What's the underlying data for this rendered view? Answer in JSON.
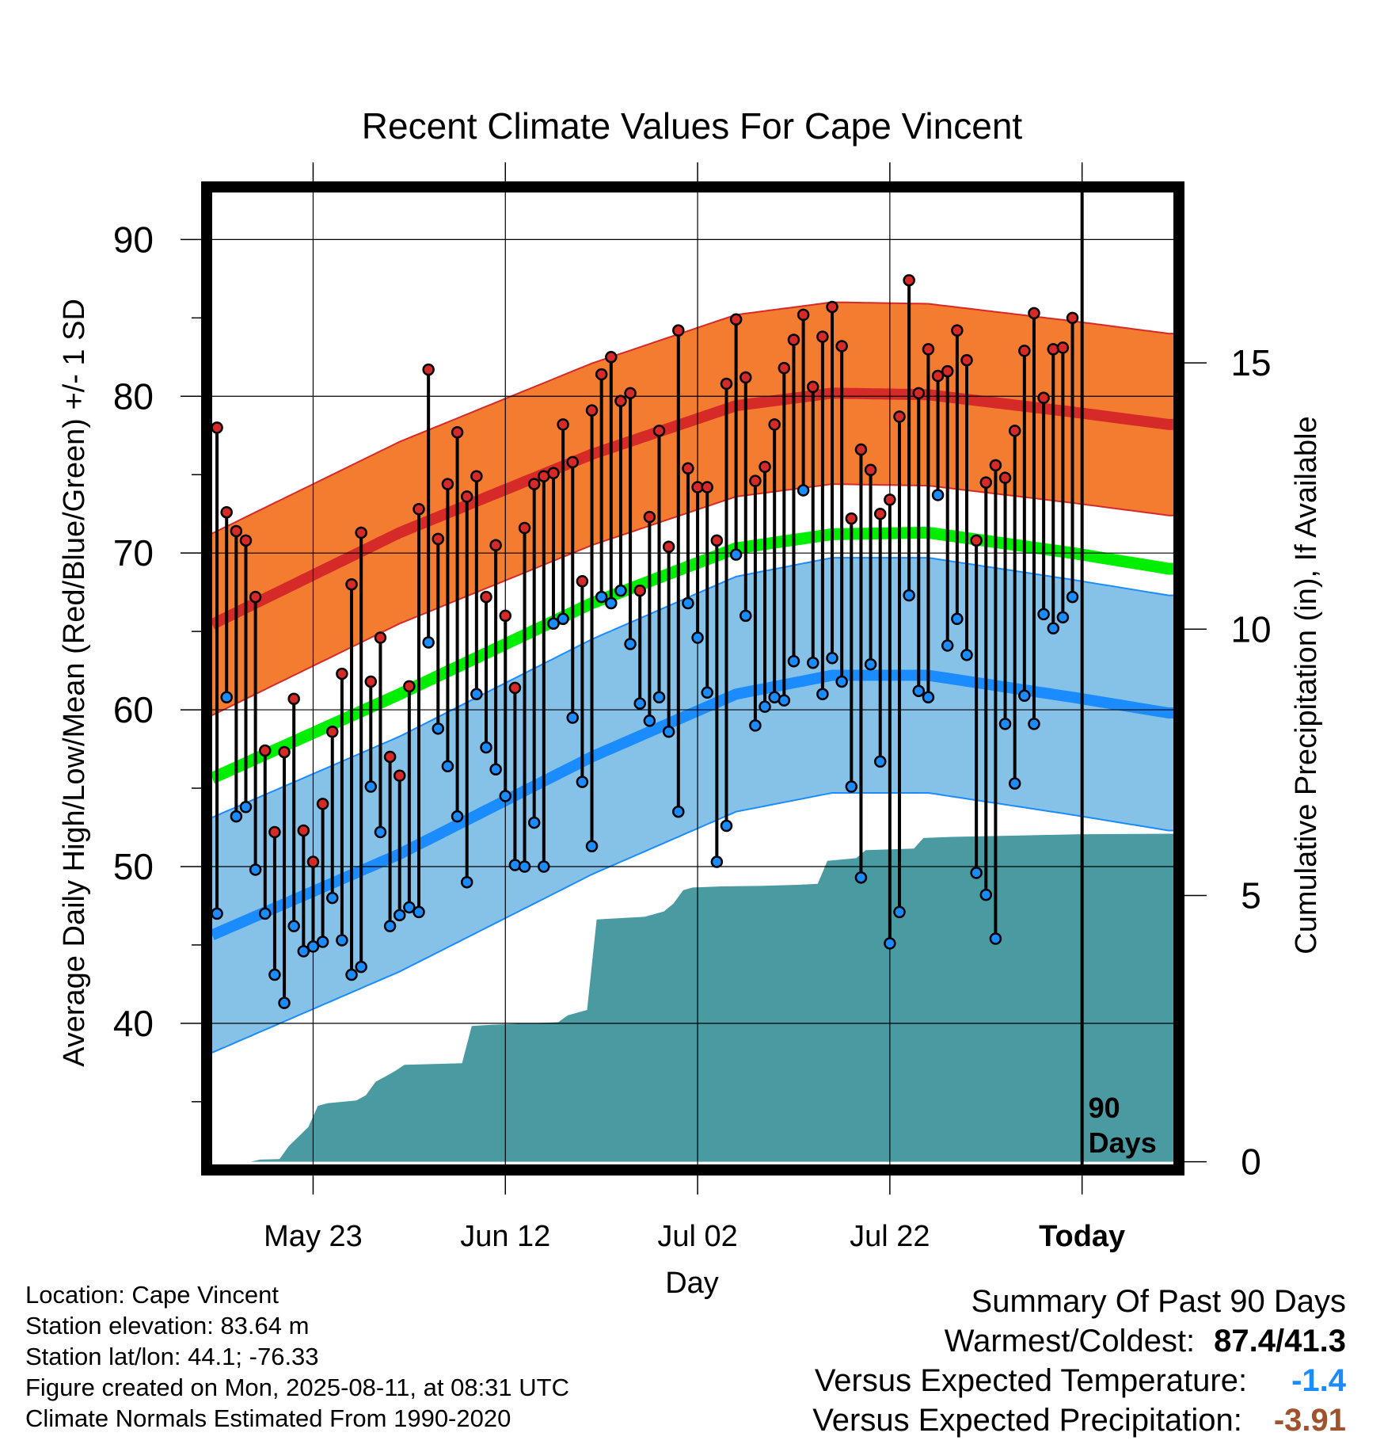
{
  "colors": {
    "normal_high_band": "#f47c30",
    "normal_high_mean": "#d62a28",
    "normal_mean": "#00ee00",
    "normal_low_band": "#86c1e8",
    "normal_low_mean": "#1a8cff",
    "precip_fill": "#4a9aa2",
    "high_marker": "#d62a28",
    "low_marker": "#1a8cff",
    "temp_negative": "#1a8cff",
    "precip_negative": "#a0522d"
  },
  "chart_data": {
    "type": "line",
    "title": "Recent Climate Values For Cape Vincent",
    "xlabel": "Day",
    "ylabel": "Average Daily High/Low/Mean (Red/Blue/Green) +/- 1 SD",
    "y2label": "Cumulative Precipitation (in), If Available",
    "ylim": [
      31,
      93
    ],
    "y2lim": [
      -0.05,
      18.2
    ],
    "yticks": [
      40,
      50,
      60,
      70,
      80,
      90
    ],
    "y2ticks": [
      0,
      5,
      10,
      15
    ],
    "x_tick_labels": [
      {
        "day": 11,
        "label": "May 23"
      },
      {
        "day": 31,
        "label": "Jun 12"
      },
      {
        "day": 51,
        "label": "Jul 02"
      },
      {
        "day": 71,
        "label": "Jul 22"
      },
      {
        "day": 91,
        "label": "Today"
      }
    ],
    "today_marker_label": "90\nDays",
    "grid": true,
    "normals": {
      "high_mean": [
        [
          0,
          65.3
        ],
        [
          20,
          71.3
        ],
        [
          40,
          76.3
        ],
        [
          55,
          79.4
        ],
        [
          65,
          80.2
        ],
        [
          75,
          80.1
        ],
        [
          90,
          79.0
        ],
        [
          100,
          78.2
        ]
      ],
      "high_sd": 5.8,
      "low_mean": [
        [
          0,
          45.5
        ],
        [
          20,
          50.8
        ],
        [
          40,
          57.0
        ],
        [
          55,
          61.0
        ],
        [
          65,
          62.2
        ],
        [
          75,
          62.2
        ],
        [
          90,
          60.8
        ],
        [
          100,
          59.8
        ]
      ],
      "low_sd": 7.5,
      "mean": [
        [
          0,
          55.5
        ],
        [
          20,
          61.0
        ],
        [
          40,
          66.8
        ],
        [
          55,
          70.3
        ],
        [
          65,
          71.2
        ],
        [
          75,
          71.3
        ],
        [
          90,
          70.0
        ],
        [
          100,
          69.0
        ]
      ]
    },
    "series": [
      {
        "name": "High",
        "values": [
          78,
          72.6,
          71.4,
          70.8,
          67.2,
          57.4,
          52.2,
          57.3,
          60.7,
          52.3,
          50.3,
          54,
          58.6,
          62.3,
          68,
          71.3,
          61.8,
          64.6,
          57,
          55.8,
          61.5,
          72.8,
          81.7,
          70.9,
          74.4,
          77.7,
          73.6,
          74.9,
          67.2,
          70.5,
          66,
          61.4,
          71.6,
          74.4,
          74.9,
          75.1,
          78.2,
          75.8,
          68.2,
          79.1,
          81.4,
          82.5,
          79.7,
          80.2,
          67.6,
          72.3,
          77.8,
          70.4,
          84.2,
          75.4,
          74.2,
          74.2,
          70.8,
          80.8,
          84.9,
          81.2,
          74.6,
          75.5,
          78.2,
          81.8,
          83.6,
          85.2,
          80.6,
          83.8,
          85.7,
          83.2,
          72.2,
          76.6,
          75.3,
          72.5,
          73.4,
          78.7,
          87.4,
          80.2,
          83,
          81.3,
          81.6,
          84.2,
          82.3,
          70.8,
          74.5,
          75.6,
          74.8,
          77.8,
          82.9,
          85.3,
          79.9,
          83,
          83.1,
          85
        ]
      },
      {
        "name": "Low",
        "values": [
          47,
          60.8,
          53.2,
          53.8,
          49.8,
          47,
          43.1,
          41.3,
          46.2,
          44.6,
          44.9,
          45.2,
          48,
          45.3,
          43.1,
          43.6,
          55.1,
          52.2,
          46.2,
          46.9,
          47.4,
          47.1,
          64.3,
          58.8,
          56.4,
          53.2,
          49,
          61,
          57.6,
          56.2,
          54.5,
          50.1,
          50,
          52.8,
          50,
          65.5,
          65.8,
          59.5,
          55.4,
          51.3,
          67.2,
          66.8,
          67.6,
          64.2,
          60.4,
          59.3,
          60.8,
          58.6,
          53.5,
          66.8,
          64.6,
          61.1,
          50.3,
          52.6,
          69.9,
          66,
          59,
          60.2,
          60.8,
          60.6,
          63.1,
          74,
          63,
          61,
          63.3,
          61.8,
          55.1,
          49.3,
          62.9,
          56.7,
          45.1,
          47.1,
          67.3,
          61.2,
          60.8,
          73.7,
          64.1,
          65.8,
          63.5,
          49.6,
          48.2,
          45.4,
          59.1,
          55.3,
          60.9,
          59.1,
          66.1,
          65.2,
          65.9,
          67.2
        ]
      }
    ],
    "precip_cumulative": [
      [
        0,
        0
      ],
      [
        4,
        0
      ],
      [
        5,
        0.04
      ],
      [
        7,
        0.05
      ],
      [
        8,
        0.3
      ],
      [
        10,
        0.65
      ],
      [
        11,
        1.05
      ],
      [
        12,
        1.1
      ],
      [
        15,
        1.15
      ],
      [
        16,
        1.25
      ],
      [
        17,
        1.5
      ],
      [
        18,
        1.6
      ],
      [
        19,
        1.7
      ],
      [
        20,
        1.82
      ],
      [
        26,
        1.85
      ],
      [
        27,
        2.55
      ],
      [
        29,
        2.57
      ],
      [
        36,
        2.62
      ],
      [
        37,
        2.75
      ],
      [
        39,
        2.85
      ],
      [
        40,
        4.55
      ],
      [
        45,
        4.6
      ],
      [
        47,
        4.7
      ],
      [
        48,
        4.85
      ],
      [
        49,
        5.1
      ],
      [
        50,
        5.15
      ],
      [
        53,
        5.17
      ],
      [
        57,
        5.18
      ],
      [
        61,
        5.2
      ],
      [
        63,
        5.22
      ],
      [
        64,
        5.65
      ],
      [
        67,
        5.7
      ],
      [
        68,
        5.85
      ],
      [
        73,
        5.88
      ],
      [
        74,
        6.08
      ],
      [
        77,
        6.1
      ],
      [
        90,
        6.15
      ],
      [
        100,
        6.16
      ]
    ]
  },
  "footer": {
    "location": "Location: Cape Vincent",
    "elevation": "Station elevation: 83.64 m",
    "latlon": "Station lat/lon: 44.1; -76.33",
    "created": "Figure created on Mon, 2025-08-11, at 08:31 UTC",
    "normals_period": "Climate Normals Estimated From 1990-2020"
  },
  "summary": {
    "heading": "Summary Of Past 90 Days",
    "warmest_label": "Warmest/Coldest:",
    "warmest_value": "87.4/41.3",
    "temp_label": "Versus Expected Temperature:",
    "temp_value": "-1.4",
    "precip_label": "Versus Expected Precipitation:",
    "precip_value": "-3.91"
  }
}
